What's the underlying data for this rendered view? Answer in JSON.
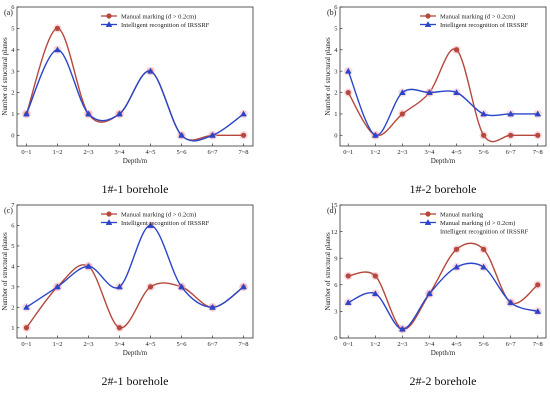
{
  "palette": {
    "manual": "#b5483c",
    "irssrf": "#2b45c9",
    "halo": "#f4b8c4"
  },
  "chart_data": [
    {
      "type": "line",
      "panel_label": "(a)",
      "caption": "1#-1 borehole",
      "categories": [
        "0~1",
        "1~2",
        "2~3",
        "3~4",
        "4~5",
        "5~6",
        "6~7",
        "7~8"
      ],
      "xlabel": "Depth/m",
      "ylabel": "Number of structural planes",
      "ylim": [
        -0.5,
        6
      ],
      "yticks": [
        "0",
        "1",
        "2",
        "3",
        "4",
        "5",
        "6"
      ],
      "legend_position": "top-right",
      "series": [
        {
          "name": "Manual marking  (d > 0.2cm)",
          "marker": "circle",
          "color": "#b5483c",
          "values": [
            1,
            5,
            1,
            1,
            3,
            0,
            0,
            0
          ]
        },
        {
          "name": "Intelligent recognition of IRSSRF",
          "marker": "triangle",
          "color": "#2b45c9",
          "values": [
            1,
            4,
            1,
            1,
            3,
            0,
            0,
            1
          ]
        }
      ]
    },
    {
      "type": "line",
      "panel_label": "(b)",
      "caption": "1#-2 borehole",
      "categories": [
        "0~1",
        "1~2",
        "2~3",
        "3~4",
        "4~5",
        "5~6",
        "6~7",
        "7~8"
      ],
      "xlabel": "Depth/m",
      "ylabel": "Number of structural planes",
      "ylim": [
        -0.5,
        6
      ],
      "yticks": [
        "0",
        "1",
        "2",
        "3",
        "4",
        "5",
        "6"
      ],
      "legend_position": "top-right",
      "series": [
        {
          "name": "Manual marking  (d > 0.2cm)",
          "marker": "circle",
          "color": "#b5483c",
          "values": [
            2,
            0,
            1,
            2,
            4,
            0,
            0,
            0
          ]
        },
        {
          "name": "Intelligent recognition of IRSSRF",
          "marker": "triangle",
          "color": "#2b45c9",
          "values": [
            3,
            0,
            2,
            2,
            2,
            1,
            1,
            1
          ]
        }
      ]
    },
    {
      "type": "line",
      "panel_label": "(c)",
      "caption": "2#-1 borehole",
      "categories": [
        "0~1",
        "1~2",
        "2~3",
        "3~4",
        "4~5",
        "5~6",
        "6~7",
        "7~8"
      ],
      "xlabel": "Depth/m",
      "ylabel": "Number of structural planes",
      "ylim": [
        0.5,
        7
      ],
      "yticks": [
        "1",
        "2",
        "3",
        "4",
        "5",
        "6",
        "7"
      ],
      "legend_position": "top-right",
      "series": [
        {
          "name": "Manual marking  (d > 0.2cm)",
          "marker": "circle",
          "color": "#b5483c",
          "values": [
            1,
            3,
            4,
            1,
            3,
            3,
            2,
            3
          ]
        },
        {
          "name": "Intelligent recognition of IRSSRF",
          "marker": "triangle",
          "color": "#2b45c9",
          "values": [
            2,
            3,
            4,
            3,
            6,
            3,
            2,
            3
          ]
        }
      ]
    },
    {
      "type": "line",
      "panel_label": "(d)",
      "caption": "2#-2 borehole",
      "categories": [
        "0~1",
        "1~2",
        "2~3",
        "3~4",
        "4~5",
        "5~6",
        "6~7",
        "7~8"
      ],
      "xlabel": "Depth/m",
      "ylabel": "Number of structural planes",
      "ylim": [
        0,
        15
      ],
      "yticks": [
        "0",
        "3",
        "6",
        "9",
        "12",
        "15"
      ],
      "legend_position": "top-right",
      "legend_extra": "Intelligent recognition of IRSSRF",
      "series": [
        {
          "name": "Manual marking",
          "marker": "circle",
          "color": "#b5483c",
          "values": [
            7,
            7,
            1,
            5,
            10,
            10,
            4,
            6
          ]
        },
        {
          "name": "Manual marking  (d > 0.2cm)",
          "marker": "triangle",
          "color": "#2b45c9",
          "values": [
            4,
            5,
            1,
            5,
            8,
            8,
            4,
            3
          ]
        }
      ]
    }
  ]
}
